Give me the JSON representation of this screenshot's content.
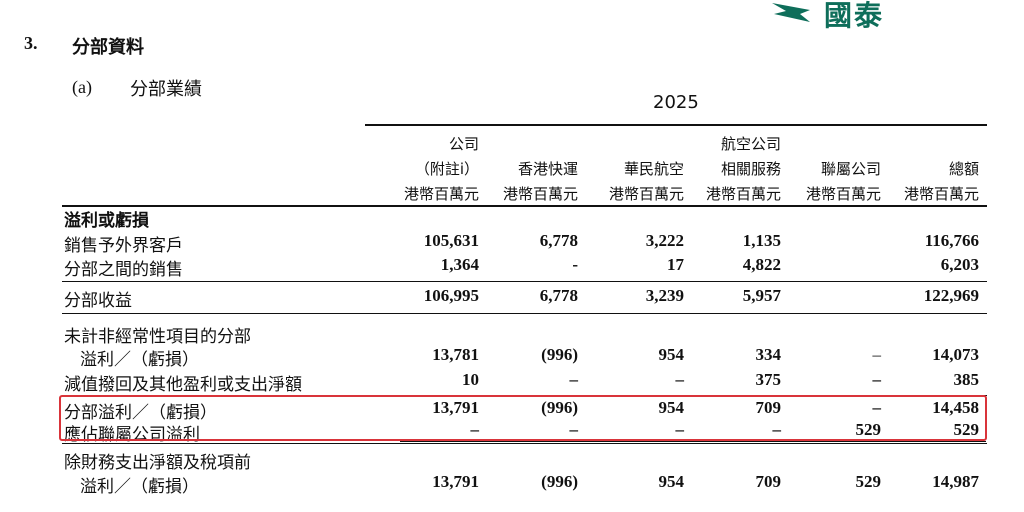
{
  "brand": {
    "name": "國泰",
    "accent": "#0e6e5a"
  },
  "section": {
    "number": "3.",
    "title": "分部資料"
  },
  "subsection": {
    "number": "(a)",
    "title": "分部業績"
  },
  "year": "2025",
  "columns": [
    {
      "line1": "",
      "line2": "公司",
      "line3": "（附註i）",
      "unit": "港幣百萬元"
    },
    {
      "line1": "",
      "line2": "",
      "line3": "香港快運",
      "unit": "港幣百萬元"
    },
    {
      "line1": "",
      "line2": "",
      "line3": "華民航空",
      "unit": "港幣百萬元"
    },
    {
      "line1": "",
      "line2": "航空公司",
      "line3": "相關服務",
      "unit": "港幣百萬元"
    },
    {
      "line1": "",
      "line2": "",
      "line3": "聯屬公司",
      "unit": "港幣百萬元"
    },
    {
      "line1": "",
      "line2": "",
      "line3": "總額",
      "unit": "港幣百萬元"
    }
  ],
  "rows": [
    {
      "label": "溢利或虧損",
      "values": [
        "",
        "",
        "",
        "",
        "",
        ""
      ]
    },
    {
      "label": "銷售予外界客戶",
      "values": [
        "105,631",
        "6,778",
        "3,222",
        "1,135",
        "",
        "116,766"
      ]
    },
    {
      "label": "分部之間的銷售",
      "values": [
        "1,364",
        "-",
        "17",
        "4,822",
        "",
        "6,203"
      ]
    },
    {
      "label": "分部收益",
      "values": [
        "106,995",
        "6,778",
        "3,239",
        "5,957",
        "",
        "122,969"
      ]
    },
    {
      "label": "未計非經常性項目的分部",
      "values": [
        "",
        "",
        "",
        "",
        "",
        ""
      ]
    },
    {
      "label": "溢利／（虧損）",
      "values": [
        "13,781",
        "(996)",
        "954",
        "334",
        "–",
        "14,073"
      ]
    },
    {
      "label": "減值撥回及其他盈利或支出淨額",
      "values": [
        "10",
        "–",
        "–",
        "375",
        "–",
        "385"
      ]
    },
    {
      "label": "分部溢利／（虧損）",
      "values": [
        "13,791",
        "(996)",
        "954",
        "709",
        "–",
        "14,458"
      ]
    },
    {
      "label": "應佔聯屬公司溢利",
      "values": [
        "–",
        "–",
        "–",
        "–",
        "529",
        "529"
      ]
    },
    {
      "label": "除財務支出淨額及稅項前",
      "values": [
        "",
        "",
        "",
        "",
        "",
        ""
      ]
    },
    {
      "label": "溢利／（虧損）",
      "values": [
        "13,791",
        "(996)",
        "954",
        "709",
        "529",
        "14,987"
      ]
    }
  ]
}
